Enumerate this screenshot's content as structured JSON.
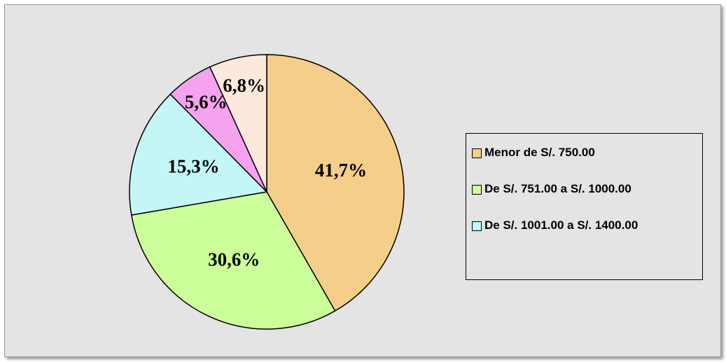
{
  "chart_data": {
    "type": "pie",
    "categories": [
      "Menor de S/. 750.00",
      "De S/. 751.00 a S/. 1000.00",
      "De S/. 1001.00 a S/. 1400.00",
      null,
      null
    ],
    "values": [
      41.7,
      30.6,
      15.3,
      5.6,
      6.8
    ],
    "value_labels": [
      "41,7%",
      "30,6%",
      "15,3%",
      "5,6%",
      "6,8%"
    ],
    "colors": [
      "#f5cf8a",
      "#ccff99",
      "#c4f6f6",
      "#f5a3ee",
      "#fde9db"
    ]
  }
}
